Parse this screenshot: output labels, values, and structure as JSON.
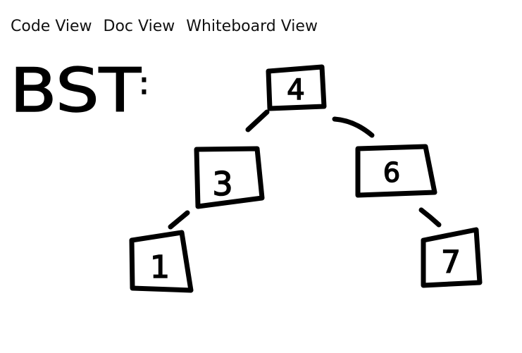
{
  "tabs": [
    {
      "label": "Code View"
    },
    {
      "label": "Doc View"
    },
    {
      "label": "Whiteboard View"
    }
  ],
  "whiteboard": {
    "title": "BST",
    "title_suffix": ":",
    "nodes": [
      {
        "id": "n4",
        "value": "4"
      },
      {
        "id": "n3",
        "value": "3"
      },
      {
        "id": "n6",
        "value": "6"
      },
      {
        "id": "n1",
        "value": "1"
      },
      {
        "id": "n7",
        "value": "7"
      }
    ],
    "colors": {
      "ink": "#000000",
      "background": "#ffffff"
    }
  }
}
